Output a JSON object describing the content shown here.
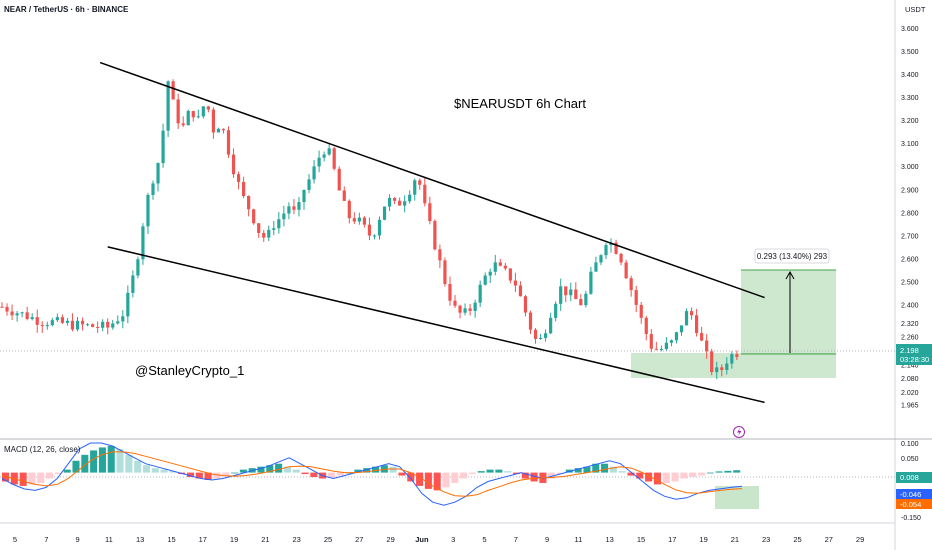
{
  "header": {
    "symbol_title": "NEAR / TetherUS · 6h · BINANCE"
  },
  "chart_overlay": {
    "chart_title": "$NEARUSDT 6h Chart",
    "watermark": "@StanleyCrypto_1",
    "measure_label": "0.293 (13.40%) 293",
    "price_label": "2.198",
    "countdown_label": "03:28:30"
  },
  "colors": {
    "up": "#26a69a",
    "down": "#ef5350",
    "macd_line": "#2962ff",
    "signal_line": "#ff6d00",
    "zone_fill": "#a5d6a7",
    "price_tag": "#26a69a"
  },
  "price_axis": {
    "unit": "USDT",
    "ticks": [
      "3.600",
      "3.500",
      "3.400",
      "3.300",
      "3.200",
      "3.100",
      "3.000",
      "2.900",
      "2.800",
      "2.700",
      "2.600",
      "2.500",
      "2.400",
      "2.320",
      "2.260",
      "2.198",
      "2.140",
      "2.080",
      "2.020",
      "1.965"
    ]
  },
  "macd_panel": {
    "label": "MACD (12, 26, close)",
    "ticks": [
      "0.100",
      "0.050",
      "0.008",
      "-0.046",
      "-0.054",
      "-0.100",
      "-0.150"
    ],
    "tag_hist": "0.008",
    "tag_macd": "-0.046",
    "tag_signal": "-0.054"
  },
  "time_axis": {
    "labels": [
      "5",
      "7",
      "9",
      "11",
      "13",
      "15",
      "17",
      "19",
      "21",
      "23",
      "25",
      "27",
      "29",
      "Jun",
      "3",
      "5",
      "7",
      "9",
      "11",
      "13",
      "15",
      "17",
      "19",
      "21",
      "23",
      "25",
      "27",
      "29"
    ]
  },
  "chart_data": {
    "type": "candlestick",
    "title": "$NEARUSDT 6h Chart",
    "symbol": "NEAR / TetherUS",
    "timeframe": "6h",
    "exchange": "BINANCE",
    "y_unit": "USDT",
    "ylim": [
      1.94,
      3.67
    ],
    "x_labels": [
      "5",
      "7",
      "9",
      "11",
      "13",
      "15",
      "17",
      "19",
      "21",
      "23",
      "25",
      "27",
      "29",
      "Jun",
      "3",
      "5",
      "7",
      "9",
      "11",
      "13",
      "15",
      "17",
      "19",
      "21",
      "23",
      "25",
      "27",
      "29"
    ],
    "last_price": 2.198,
    "price_path": [
      [
        0,
        2.39
      ],
      [
        5,
        2.33
      ],
      [
        10,
        2.31
      ],
      [
        14,
        2.3
      ],
      [
        16,
        2.36
      ],
      [
        17,
        2.46
      ],
      [
        18,
        2.62
      ],
      [
        19,
        2.82
      ],
      [
        20,
        2.95
      ],
      [
        21,
        3.05
      ],
      [
        22,
        3.37
      ],
      [
        23,
        3.22
      ],
      [
        24,
        3.17
      ],
      [
        25,
        3.25
      ],
      [
        26,
        3.2
      ],
      [
        27,
        3.29
      ],
      [
        28,
        3.16
      ],
      [
        29,
        3.19
      ],
      [
        30,
        3.07
      ],
      [
        31,
        2.95
      ],
      [
        32,
        2.86
      ],
      [
        33,
        2.8
      ],
      [
        34,
        2.72
      ],
      [
        35,
        2.68
      ],
      [
        36,
        2.75
      ],
      [
        37,
        2.78
      ],
      [
        38,
        2.83
      ],
      [
        39,
        2.78
      ],
      [
        40,
        2.9
      ],
      [
        41,
        2.96
      ],
      [
        42,
        3.04
      ],
      [
        43,
        3.09
      ],
      [
        44,
        2.98
      ],
      [
        45,
        2.85
      ],
      [
        46,
        2.78
      ],
      [
        47,
        2.77
      ],
      [
        48,
        2.73
      ],
      [
        49,
        2.69
      ],
      [
        50,
        2.78
      ],
      [
        51,
        2.86
      ],
      [
        52,
        2.83
      ],
      [
        53,
        2.85
      ],
      [
        54,
        2.9
      ],
      [
        55,
        2.97
      ],
      [
        56,
        2.82
      ],
      [
        57,
        2.7
      ],
      [
        58,
        2.58
      ],
      [
        59,
        2.46
      ],
      [
        60,
        2.38
      ],
      [
        61,
        2.35
      ],
      [
        62,
        2.38
      ],
      [
        63,
        2.45
      ],
      [
        64,
        2.52
      ],
      [
        65,
        2.58
      ],
      [
        66,
        2.55
      ],
      [
        67,
        2.53
      ],
      [
        68,
        2.49
      ],
      [
        69,
        2.4
      ],
      [
        70,
        2.3
      ],
      [
        71,
        2.22
      ],
      [
        72,
        2.3
      ],
      [
        73,
        2.4
      ],
      [
        74,
        2.47
      ],
      [
        75,
        2.45
      ],
      [
        76,
        2.42
      ],
      [
        77,
        2.4
      ],
      [
        78,
        2.52
      ],
      [
        79,
        2.6
      ],
      [
        80,
        2.68
      ],
      [
        81,
        2.66
      ],
      [
        82,
        2.6
      ],
      [
        83,
        2.5
      ],
      [
        84,
        2.4
      ],
      [
        85,
        2.3
      ],
      [
        86,
        2.22
      ],
      [
        87,
        2.2
      ],
      [
        88,
        2.22
      ],
      [
        89,
        2.24
      ],
      [
        90,
        2.32
      ],
      [
        91,
        2.38
      ],
      [
        92,
        2.3
      ],
      [
        93,
        2.2
      ],
      [
        94,
        2.12
      ],
      [
        95,
        2.1
      ],
      [
        96,
        2.16
      ],
      [
        97,
        2.19
      ],
      [
        98,
        2.198
      ]
    ],
    "descending_channel": {
      "upper_line": [
        [
          13,
          3.45
        ],
        [
          73,
          2.55
        ],
        [
          101,
          2.43
        ]
      ],
      "lower_line": [
        [
          14,
          2.65
        ],
        [
          71,
          2.15
        ],
        [
          101,
          1.975
        ]
      ]
    },
    "target_box": {
      "entry": 2.198,
      "target": 2.491,
      "change": "0.293 (13.40%) 293"
    },
    "support_zone": [
      2.11,
      2.22
    ],
    "macd": {
      "label": "MACD (12, 26, close)",
      "ylim": [
        -0.16,
        0.105
      ],
      "last_histogram": 0.008,
      "last_macd": -0.046,
      "last_signal": -0.054,
      "histogram": [
        -0.03,
        -0.04,
        -0.045,
        -0.04,
        -0.035,
        -0.02,
        -0.005,
        0.01,
        0.04,
        0.06,
        0.075,
        0.085,
        0.09,
        0.08,
        0.06,
        0.04,
        0.025,
        0.015,
        0.01,
        0.005,
        -0.005,
        -0.015,
        -0.02,
        -0.025,
        -0.02,
        -0.01,
        0.0,
        0.01,
        0.015,
        0.02,
        0.025,
        0.03,
        0.02,
        0.01,
        -0.005,
        -0.015,
        -0.02,
        -0.018,
        -0.01,
        0.0,
        0.01,
        0.015,
        0.02,
        0.025,
        0.02,
        -0.01,
        -0.03,
        -0.045,
        -0.055,
        -0.06,
        -0.05,
        -0.035,
        -0.02,
        -0.005,
        0.005,
        0.01,
        0.01,
        0.005,
        -0.005,
        -0.02,
        -0.03,
        -0.035,
        -0.02,
        -0.005,
        0.01,
        0.015,
        0.02,
        0.03,
        0.03,
        0.02,
        0.005,
        -0.01,
        -0.02,
        -0.03,
        -0.04,
        -0.035,
        -0.03,
        -0.02,
        -0.015,
        -0.01,
        0.0,
        0.004,
        0.006,
        0.008
      ],
      "macd_line": [
        -0.02,
        -0.04,
        -0.055,
        -0.06,
        -0.05,
        -0.02,
        0.03,
        0.08,
        0.1,
        0.1,
        0.09,
        0.07,
        0.05,
        0.03,
        0.02,
        0.01,
        0.0,
        -0.01,
        -0.02,
        -0.025,
        -0.02,
        -0.01,
        0.0,
        0.01,
        0.02,
        0.035,
        0.05,
        0.03,
        0.01,
        -0.01,
        -0.02,
        -0.01,
        0.0,
        0.01,
        0.02,
        0.03,
        0.02,
        -0.02,
        -0.07,
        -0.1,
        -0.11,
        -0.1,
        -0.08,
        -0.05,
        -0.03,
        -0.02,
        -0.01,
        0.0,
        -0.01,
        -0.02,
        -0.01,
        0.0,
        0.01,
        0.02,
        0.03,
        0.04,
        0.03,
        0.0,
        -0.03,
        -0.06,
        -0.08,
        -0.09,
        -0.085,
        -0.07,
        -0.06,
        -0.055,
        -0.05,
        -0.046
      ],
      "signal_line": [
        -0.01,
        -0.02,
        -0.03,
        -0.04,
        -0.045,
        -0.04,
        -0.02,
        0.01,
        0.04,
        0.06,
        0.07,
        0.07,
        0.065,
        0.055,
        0.045,
        0.035,
        0.025,
        0.015,
        0.005,
        -0.005,
        -0.01,
        -0.012,
        -0.01,
        -0.005,
        0.002,
        0.01,
        0.02,
        0.022,
        0.02,
        0.012,
        0.005,
        0.0,
        0.0,
        0.003,
        0.008,
        0.012,
        0.012,
        0.0,
        -0.02,
        -0.045,
        -0.065,
        -0.078,
        -0.08,
        -0.075,
        -0.06,
        -0.048,
        -0.035,
        -0.025,
        -0.02,
        -0.018,
        -0.016,
        -0.012,
        -0.006,
        0.0,
        0.006,
        0.014,
        0.02,
        0.015,
        0.0,
        -0.02,
        -0.04,
        -0.058,
        -0.068,
        -0.07,
        -0.065,
        -0.06,
        -0.056,
        -0.054
      ]
    }
  }
}
